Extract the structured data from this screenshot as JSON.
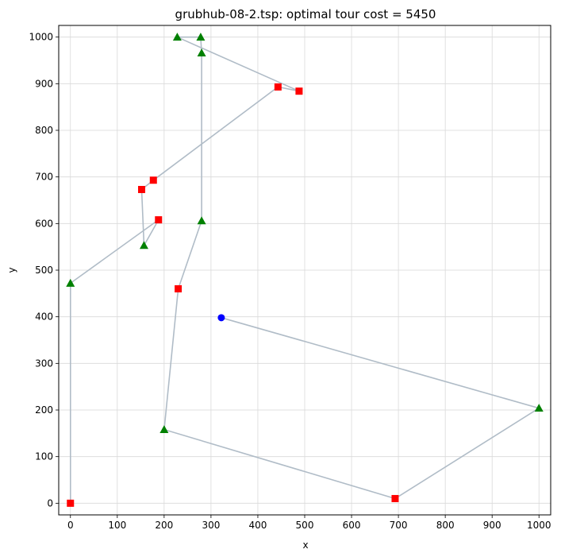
{
  "chart_data": {
    "type": "scatter",
    "title": "grubhub-08-2.tsp: optimal tour cost = 5450",
    "xlabel": "x",
    "ylabel": "y",
    "xlim": [
      -25,
      1025
    ],
    "ylim": [
      -25,
      1025
    ],
    "xticks": [
      0,
      100,
      200,
      300,
      400,
      500,
      600,
      700,
      800,
      900,
      1000
    ],
    "yticks": [
      0,
      100,
      200,
      300,
      400,
      500,
      600,
      700,
      800,
      900,
      1000
    ],
    "grid": true,
    "colors": {
      "depot": "#0000ff",
      "square": "#ff0000",
      "triangle": "#008000",
      "tour": "#b0bcc7",
      "grid": "#d9d9d9"
    },
    "tour": [
      [
        322,
        398
      ],
      [
        1000,
        204
      ],
      [
        693,
        10
      ],
      [
        200,
        158
      ],
      [
        230,
        460
      ],
      [
        280,
        606
      ],
      [
        280,
        966
      ],
      [
        278,
        1000
      ],
      [
        228,
        1000
      ],
      [
        488,
        884
      ],
      [
        443,
        893
      ],
      [
        177,
        693
      ],
      [
        152,
        673
      ],
      [
        157,
        553
      ],
      [
        188,
        608
      ],
      [
        0,
        472
      ],
      [
        0,
        0
      ]
    ],
    "points": [
      {
        "x": 322,
        "y": 398,
        "marker": "circle",
        "color": "#0000ff"
      },
      {
        "x": 1000,
        "y": 204,
        "marker": "triangle",
        "color": "#008000"
      },
      {
        "x": 693,
        "y": 10,
        "marker": "square",
        "color": "#ff0000"
      },
      {
        "x": 200,
        "y": 158,
        "marker": "triangle",
        "color": "#008000"
      },
      {
        "x": 230,
        "y": 460,
        "marker": "square",
        "color": "#ff0000"
      },
      {
        "x": 280,
        "y": 606,
        "marker": "triangle",
        "color": "#008000"
      },
      {
        "x": 280,
        "y": 966,
        "marker": "triangle",
        "color": "#008000"
      },
      {
        "x": 278,
        "y": 1000,
        "marker": "triangle",
        "color": "#008000"
      },
      {
        "x": 228,
        "y": 1000,
        "marker": "triangle",
        "color": "#008000"
      },
      {
        "x": 488,
        "y": 884,
        "marker": "square",
        "color": "#ff0000"
      },
      {
        "x": 443,
        "y": 893,
        "marker": "square",
        "color": "#ff0000"
      },
      {
        "x": 177,
        "y": 693,
        "marker": "square",
        "color": "#ff0000"
      },
      {
        "x": 152,
        "y": 673,
        "marker": "square",
        "color": "#ff0000"
      },
      {
        "x": 157,
        "y": 553,
        "marker": "triangle",
        "color": "#008000"
      },
      {
        "x": 188,
        "y": 608,
        "marker": "square",
        "color": "#ff0000"
      },
      {
        "x": 0,
        "y": 472,
        "marker": "triangle",
        "color": "#008000"
      },
      {
        "x": 0,
        "y": 0,
        "marker": "square",
        "color": "#ff0000"
      }
    ]
  }
}
